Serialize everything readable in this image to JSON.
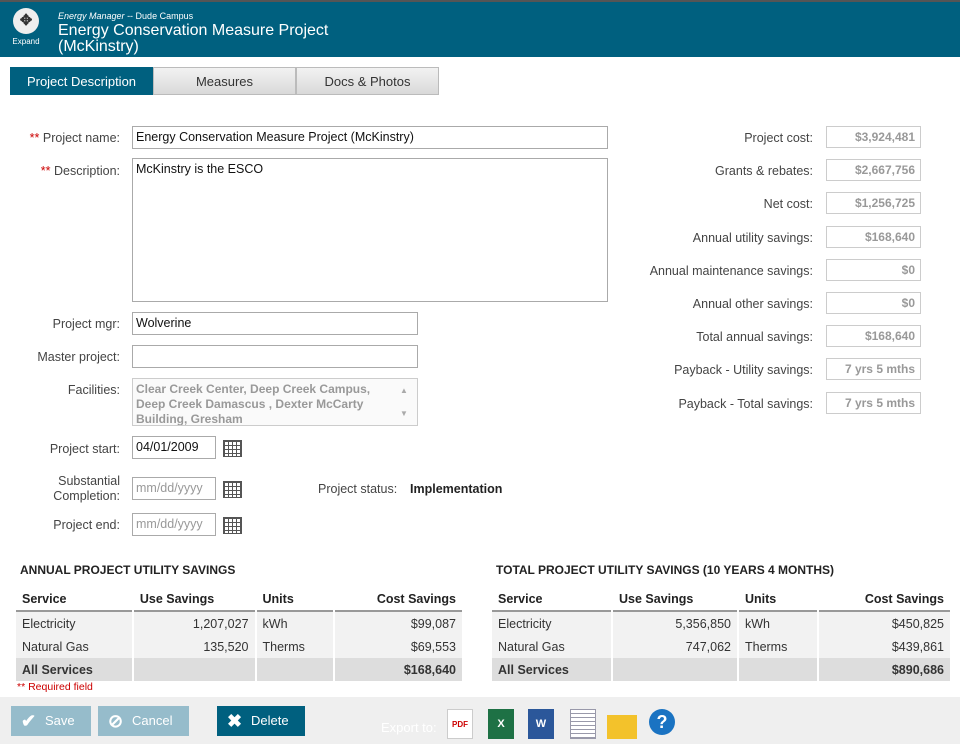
{
  "header": {
    "expand_label": "Expand",
    "app": "Energy Manager",
    "campus": "-- Dude Campus",
    "title": "Energy Conservation Measure Project (McKinstry)"
  },
  "tabs": [
    {
      "label": "Project Description"
    },
    {
      "label": "Measures"
    },
    {
      "label": "Docs & Photos"
    }
  ],
  "form": {
    "required_mark": "**",
    "project_name_label": "Project name:",
    "project_name": "Energy Conservation Measure Project (McKinstry)",
    "description_label": "Description:",
    "description": "McKinstry is the ESCO",
    "mgr_label": "Project mgr:",
    "mgr": "Wolverine",
    "master_label": "Master project:",
    "master": "",
    "facilities_label": "Facilities:",
    "facilities": "Clear Creek Center, Deep Creek Campus, Deep Creek Damascus , Dexter McCarty Building, Gresham",
    "start_label": "Project start:",
    "start": "04/01/2009",
    "completion_label": "Substantial Completion:",
    "completion_placeholder": "mm/dd/yyyy",
    "end_label": "Project end:",
    "end_placeholder": "mm/dd/yyyy",
    "status_label": "Project status:",
    "status": "Implementation"
  },
  "summary": [
    {
      "label": "Project cost:",
      "value": "$3,924,481"
    },
    {
      "label": "Grants & rebates:",
      "value": "$2,667,756"
    },
    {
      "label": "Net cost:",
      "value": "$1,256,725"
    },
    {
      "label": "Annual utility savings:",
      "value": "$168,640"
    },
    {
      "label": "Annual maintenance savings:",
      "value": "$0"
    },
    {
      "label": "Annual other savings:",
      "value": "$0"
    },
    {
      "label": "Total annual savings:",
      "value": "$168,640"
    },
    {
      "label": "Payback - Utility savings:",
      "value": "7 yrs 5 mths"
    },
    {
      "label": "Payback - Total savings:",
      "value": "7 yrs 5 mths"
    }
  ],
  "annual": {
    "title": "ANNUAL PROJECT UTILITY SAVINGS",
    "headers": [
      "Service",
      "Use Savings",
      "Units",
      "Cost Savings"
    ],
    "rows": [
      [
        "Electricity",
        "1,207,027",
        "kWh",
        "$99,087"
      ],
      [
        "Natural Gas",
        "135,520",
        "Therms",
        "$69,553"
      ],
      [
        "All Services",
        "",
        "",
        "$168,640"
      ]
    ]
  },
  "total": {
    "title": "TOTAL PROJECT UTILITY SAVINGS (10 YEARS 4 MONTHS)",
    "headers": [
      "Service",
      "Use Savings",
      "Units",
      "Cost Savings"
    ],
    "rows": [
      [
        "Electricity",
        "5,356,850",
        "kWh",
        "$450,825"
      ],
      [
        "Natural Gas",
        "747,062",
        "Therms",
        "$439,861"
      ],
      [
        "All Services",
        "",
        "",
        "$890,686"
      ]
    ]
  },
  "required_note": "** Required field",
  "footer": {
    "save": "Save",
    "cancel": "Cancel",
    "delete": "Delete",
    "export_label": "Export to:",
    "pdf_text": "PDF",
    "excel_text": "X",
    "word_text": "W",
    "help_text": "?"
  },
  "colors": {
    "brand": "#00607f",
    "required": "#cc0000"
  }
}
